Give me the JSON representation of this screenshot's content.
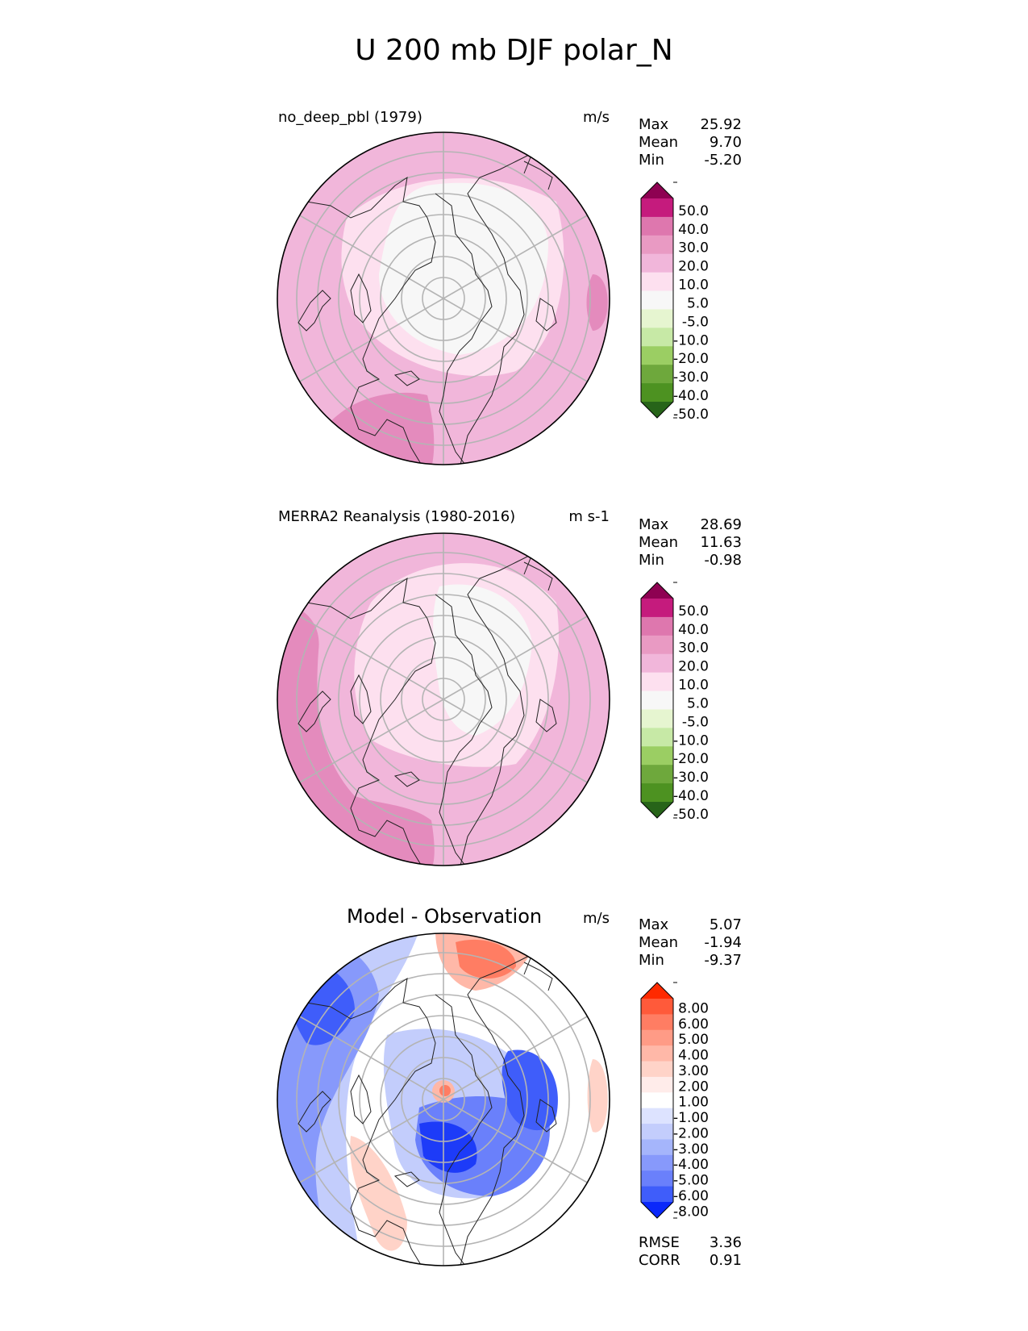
{
  "figure_title": "U 200 mb DJF polar_N",
  "chart_data": [
    {
      "type": "heatmap",
      "projection": "north-polar-stereographic",
      "title": "no_deep_pbl (1979)",
      "units": "m/s",
      "stats": {
        "max_label": "Max",
        "max": "25.92",
        "mean_label": "Mean",
        "mean": "9.70",
        "min_label": "Min",
        "min": "-5.20"
      },
      "colorbar": {
        "labels": [
          "50.0",
          "40.0",
          "30.0",
          "20.0",
          "10.0",
          "5.0",
          "-5.0",
          "-10.0",
          "-20.0",
          "-30.0",
          "-40.0",
          "-50.0"
        ],
        "colors": [
          "#8e0152",
          "#c51b7d",
          "#de77ae",
          "#e99ac3",
          "#f1b6da",
          "#fde0ef",
          "#f7f7f7",
          "#e6f5d0",
          "#c7e9a6",
          "#9bce63",
          "#6ea83c",
          "#4d9221",
          "#276419"
        ]
      }
    },
    {
      "type": "heatmap",
      "projection": "north-polar-stereographic",
      "title": "MERRA2 Reanalysis (1980-2016)",
      "units": "m s-1",
      "stats": {
        "max_label": "Max",
        "max": "28.69",
        "mean_label": "Mean",
        "mean": "11.63",
        "min_label": "Min",
        "min": "-0.98"
      },
      "colorbar": {
        "labels": [
          "50.0",
          "40.0",
          "30.0",
          "20.0",
          "10.0",
          "5.0",
          "-5.0",
          "-10.0",
          "-20.0",
          "-30.0",
          "-40.0",
          "-50.0"
        ],
        "colors": [
          "#8e0152",
          "#c51b7d",
          "#de77ae",
          "#e99ac3",
          "#f1b6da",
          "#fde0ef",
          "#f7f7f7",
          "#e6f5d0",
          "#c7e9a6",
          "#9bce63",
          "#6ea83c",
          "#4d9221",
          "#276419"
        ]
      }
    },
    {
      "type": "heatmap",
      "projection": "north-polar-stereographic",
      "title": "Model - Observation",
      "units": "m/s",
      "stats": {
        "max_label": "Max",
        "max": "5.07",
        "mean_label": "Mean",
        "mean": "-1.94",
        "min_label": "Min",
        "min": "-9.37"
      },
      "metrics": {
        "rmse_label": "RMSE",
        "rmse": "3.36",
        "corr_label": "CORR",
        "corr": "0.91"
      },
      "colorbar": {
        "labels": [
          "8.00",
          "6.00",
          "5.00",
          "4.00",
          "3.00",
          "2.00",
          "1.00",
          "-1.00",
          "-2.00",
          "-3.00",
          "-4.00",
          "-5.00",
          "-6.00",
          "-8.00"
        ],
        "colors": [
          "#ff2a00",
          "#ff5a3a",
          "#ff7d63",
          "#ff9b86",
          "#ffb8a8",
          "#ffd3c8",
          "#ffecea",
          "#ffffff",
          "#dde3ff",
          "#c3cdfc",
          "#a5b5fb",
          "#8799fb",
          "#6a80fb",
          "#3f5dfa",
          "#0a28fa"
        ]
      }
    }
  ]
}
